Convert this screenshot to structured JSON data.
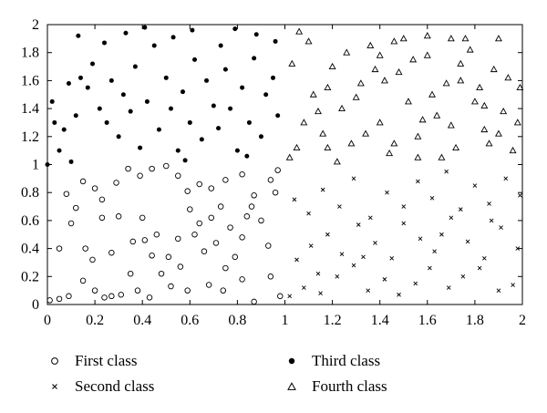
{
  "chart_data": {
    "type": "scatter",
    "title": "",
    "xlabel": "",
    "ylabel": "",
    "xlim": [
      0,
      2
    ],
    "ylim": [
      0,
      2
    ],
    "xticks": [
      0,
      0.2,
      0.4,
      0.6,
      0.8,
      1,
      1.2,
      1.4,
      1.6,
      1.8,
      2
    ],
    "xtick_labels": [
      "0",
      "0.2",
      "0.4",
      "0.6",
      "0.8",
      "1",
      "1.2",
      "1.4",
      "1.6",
      "1.8",
      "2"
    ],
    "yticks": [
      0,
      0.2,
      0.4,
      0.6,
      0.8,
      1,
      1.2,
      1.4,
      1.6,
      1.8,
      2
    ],
    "ytick_labels": [
      "0",
      "0.2",
      "0.4",
      "0.6",
      "0.8",
      "1",
      "1.2",
      "1.4",
      "1.6",
      "1.8",
      "2"
    ],
    "grid": false,
    "legend_position": "bottom",
    "series": [
      {
        "name": "First class",
        "marker": "open-circle",
        "points": [
          [
            0.01,
            0.03
          ],
          [
            0.05,
            0.04
          ],
          [
            0.09,
            0.06
          ],
          [
            0.15,
            0.17
          ],
          [
            0.2,
            0.1
          ],
          [
            0.24,
            0.05
          ],
          [
            0.27,
            0.06
          ],
          [
            0.31,
            0.07
          ],
          [
            0.38,
            0.1
          ],
          [
            0.43,
            0.05
          ],
          [
            0.52,
            0.13
          ],
          [
            0.59,
            0.1
          ],
          [
            0.68,
            0.14
          ],
          [
            0.74,
            0.1
          ],
          [
            0.82,
            0.18
          ],
          [
            0.87,
            0.02
          ],
          [
            0.94,
            0.2
          ],
          [
            0.98,
            0.06
          ],
          [
            0.05,
            0.4
          ],
          [
            0.1,
            0.58
          ],
          [
            0.08,
            0.79
          ],
          [
            0.16,
            0.4
          ],
          [
            0.19,
            0.32
          ],
          [
            0.23,
            0.62
          ],
          [
            0.27,
            0.37
          ],
          [
            0.3,
            0.63
          ],
          [
            0.35,
            0.22
          ],
          [
            0.36,
            0.45
          ],
          [
            0.4,
            0.62
          ],
          [
            0.41,
            0.46
          ],
          [
            0.44,
            0.35
          ],
          [
            0.46,
            0.5
          ],
          [
            0.48,
            0.22
          ],
          [
            0.51,
            0.34
          ],
          [
            0.55,
            0.47
          ],
          [
            0.56,
            0.27
          ],
          [
            0.6,
            0.68
          ],
          [
            0.62,
            0.5
          ],
          [
            0.64,
            0.58
          ],
          [
            0.66,
            0.38
          ],
          [
            0.69,
            0.62
          ],
          [
            0.71,
            0.44
          ],
          [
            0.73,
            0.7
          ],
          [
            0.75,
            0.26
          ],
          [
            0.77,
            0.55
          ],
          [
            0.79,
            0.34
          ],
          [
            0.82,
            0.48
          ],
          [
            0.84,
            0.63
          ],
          [
            0.86,
            0.7
          ],
          [
            0.9,
            0.6
          ],
          [
            0.93,
            0.42
          ],
          [
            0.96,
            0.8
          ],
          [
            0.15,
            0.88
          ],
          [
            0.2,
            0.83
          ],
          [
            0.23,
            0.75
          ],
          [
            0.29,
            0.87
          ],
          [
            0.34,
            0.97
          ],
          [
            0.39,
            0.92
          ],
          [
            0.44,
            0.97
          ],
          [
            0.5,
            0.99
          ],
          [
            0.55,
            0.92
          ],
          [
            0.59,
            0.81
          ],
          [
            0.64,
            0.86
          ],
          [
            0.69,
            0.83
          ],
          [
            0.75,
            0.89
          ],
          [
            0.82,
            0.93
          ],
          [
            0.87,
            0.78
          ],
          [
            0.94,
            0.89
          ],
          [
            0.97,
            0.96
          ],
          [
            0.12,
            0.69
          ]
        ]
      },
      {
        "name": "Second class",
        "marker": "cross",
        "points": [
          [
            1.02,
            0.06
          ],
          [
            1.08,
            0.12
          ],
          [
            1.15,
            0.08
          ],
          [
            1.22,
            0.2
          ],
          [
            1.29,
            0.28
          ],
          [
            1.35,
            0.1
          ],
          [
            1.42,
            0.18
          ],
          [
            1.48,
            0.07
          ],
          [
            1.55,
            0.15
          ],
          [
            1.61,
            0.26
          ],
          [
            1.69,
            0.12
          ],
          [
            1.75,
            0.2
          ],
          [
            1.82,
            0.26
          ],
          [
            1.9,
            0.1
          ],
          [
            1.96,
            0.14
          ],
          [
            1.05,
            0.32
          ],
          [
            1.11,
            0.42
          ],
          [
            1.18,
            0.5
          ],
          [
            1.24,
            0.36
          ],
          [
            1.31,
            0.57
          ],
          [
            1.38,
            0.44
          ],
          [
            1.45,
            0.33
          ],
          [
            1.5,
            0.58
          ],
          [
            1.57,
            0.47
          ],
          [
            1.63,
            0.38
          ],
          [
            1.7,
            0.62
          ],
          [
            1.77,
            0.45
          ],
          [
            1.84,
            0.33
          ],
          [
            1.91,
            0.55
          ],
          [
            1.98,
            0.4
          ],
          [
            1.04,
            0.75
          ],
          [
            1.1,
            0.65
          ],
          [
            1.16,
            0.82
          ],
          [
            1.23,
            0.7
          ],
          [
            1.29,
            0.9
          ],
          [
            1.36,
            0.62
          ],
          [
            1.43,
            0.8
          ],
          [
            1.5,
            0.7
          ],
          [
            1.56,
            0.88
          ],
          [
            1.62,
            0.76
          ],
          [
            1.68,
            0.95
          ],
          [
            1.74,
            0.68
          ],
          [
            1.8,
            0.85
          ],
          [
            1.86,
            0.72
          ],
          [
            1.93,
            0.9
          ],
          [
            1.99,
            0.78
          ],
          [
            1.14,
            0.22
          ],
          [
            1.33,
            0.34
          ],
          [
            1.66,
            0.5
          ],
          [
            1.87,
            0.6
          ]
        ]
      },
      {
        "name": "Third class",
        "marker": "filled-circle",
        "points": [
          [
            0.0,
            1.0
          ],
          [
            0.02,
            1.45
          ],
          [
            0.05,
            1.1
          ],
          [
            0.07,
            1.25
          ],
          [
            0.1,
            1.02
          ],
          [
            0.12,
            1.35
          ],
          [
            0.14,
            1.62
          ],
          [
            0.17,
            1.55
          ],
          [
            0.19,
            1.72
          ],
          [
            0.22,
            1.4
          ],
          [
            0.25,
            1.3
          ],
          [
            0.27,
            1.6
          ],
          [
            0.3,
            1.2
          ],
          [
            0.32,
            1.5
          ],
          [
            0.35,
            1.38
          ],
          [
            0.37,
            1.7
          ],
          [
            0.39,
            1.12
          ],
          [
            0.42,
            1.45
          ],
          [
            0.45,
            1.85
          ],
          [
            0.47,
            1.25
          ],
          [
            0.5,
            1.62
          ],
          [
            0.52,
            1.4
          ],
          [
            0.55,
            1.1
          ],
          [
            0.57,
            1.52
          ],
          [
            0.6,
            1.3
          ],
          [
            0.62,
            1.75
          ],
          [
            0.65,
            1.18
          ],
          [
            0.67,
            1.6
          ],
          [
            0.7,
            1.42
          ],
          [
            0.72,
            1.26
          ],
          [
            0.75,
            1.68
          ],
          [
            0.77,
            1.4
          ],
          [
            0.8,
            1.1
          ],
          [
            0.82,
            1.55
          ],
          [
            0.85,
            1.3
          ],
          [
            0.87,
            1.76
          ],
          [
            0.9,
            1.2
          ],
          [
            0.92,
            1.5
          ],
          [
            0.95,
            1.62
          ],
          [
            0.97,
            1.35
          ],
          [
            0.13,
            1.92
          ],
          [
            0.24,
            1.87
          ],
          [
            0.33,
            1.94
          ],
          [
            0.41,
            1.98
          ],
          [
            0.53,
            1.91
          ],
          [
            0.61,
            1.96
          ],
          [
            0.73,
            1.85
          ],
          [
            0.79,
            1.97
          ],
          [
            0.88,
            1.93
          ],
          [
            0.96,
            1.88
          ],
          [
            0.03,
            1.3
          ],
          [
            0.09,
            1.58
          ],
          [
            0.58,
            1.03
          ],
          [
            0.84,
            1.06
          ]
        ]
      },
      {
        "name": "Fourth class",
        "marker": "open-triangle",
        "points": [
          [
            1.02,
            1.05
          ],
          [
            1.05,
            1.12
          ],
          [
            1.08,
            1.3
          ],
          [
            1.12,
            1.5
          ],
          [
            1.16,
            1.22
          ],
          [
            1.2,
            1.7
          ],
          [
            1.24,
            1.4
          ],
          [
            1.28,
            1.15
          ],
          [
            1.32,
            1.58
          ],
          [
            1.36,
            1.85
          ],
          [
            1.4,
            1.3
          ],
          [
            1.44,
            1.08
          ],
          [
            1.48,
            1.66
          ],
          [
            1.52,
            1.45
          ],
          [
            1.56,
            1.2
          ],
          [
            1.6,
            1.78
          ],
          [
            1.64,
            1.35
          ],
          [
            1.68,
            1.58
          ],
          [
            1.72,
            1.12
          ],
          [
            1.76,
            1.9
          ],
          [
            1.8,
            1.45
          ],
          [
            1.84,
            1.25
          ],
          [
            1.88,
            1.68
          ],
          [
            1.92,
            1.38
          ],
          [
            1.96,
            1.1
          ],
          [
            1.99,
            1.55
          ],
          [
            1.03,
            1.72
          ],
          [
            1.1,
            1.88
          ],
          [
            1.18,
            1.55
          ],
          [
            1.26,
            1.8
          ],
          [
            1.34,
            1.22
          ],
          [
            1.42,
            1.6
          ],
          [
            1.5,
            1.9
          ],
          [
            1.58,
            1.32
          ],
          [
            1.66,
            1.05
          ],
          [
            1.74,
            1.72
          ],
          [
            1.82,
            1.55
          ],
          [
            1.9,
            1.9
          ],
          [
            1.98,
            1.3
          ],
          [
            1.06,
            1.95
          ],
          [
            1.14,
            1.38
          ],
          [
            1.22,
            1.02
          ],
          [
            1.3,
            1.48
          ],
          [
            1.38,
            1.68
          ],
          [
            1.46,
            1.15
          ],
          [
            1.54,
            1.75
          ],
          [
            1.62,
            1.5
          ],
          [
            1.7,
            1.28
          ],
          [
            1.78,
            1.82
          ],
          [
            1.86,
            1.15
          ],
          [
            1.94,
            1.62
          ],
          [
            1.46,
            1.88
          ],
          [
            1.6,
            1.92
          ],
          [
            1.7,
            1.9
          ],
          [
            1.84,
            1.42
          ],
          [
            1.18,
            1.12
          ],
          [
            1.4,
            1.78
          ],
          [
            1.56,
            1.05
          ],
          [
            1.9,
            1.22
          ],
          [
            1.74,
            1.6
          ]
        ]
      }
    ]
  },
  "legend": {
    "items": [
      {
        "label": "First class",
        "marker": "open-circle"
      },
      {
        "label": "Second class",
        "marker": "cross"
      },
      {
        "label": "Third class",
        "marker": "filled-circle"
      },
      {
        "label": "Fourth class",
        "marker": "open-triangle"
      }
    ]
  },
  "colors": {
    "ink": "#000000",
    "background": "#ffffff"
  }
}
